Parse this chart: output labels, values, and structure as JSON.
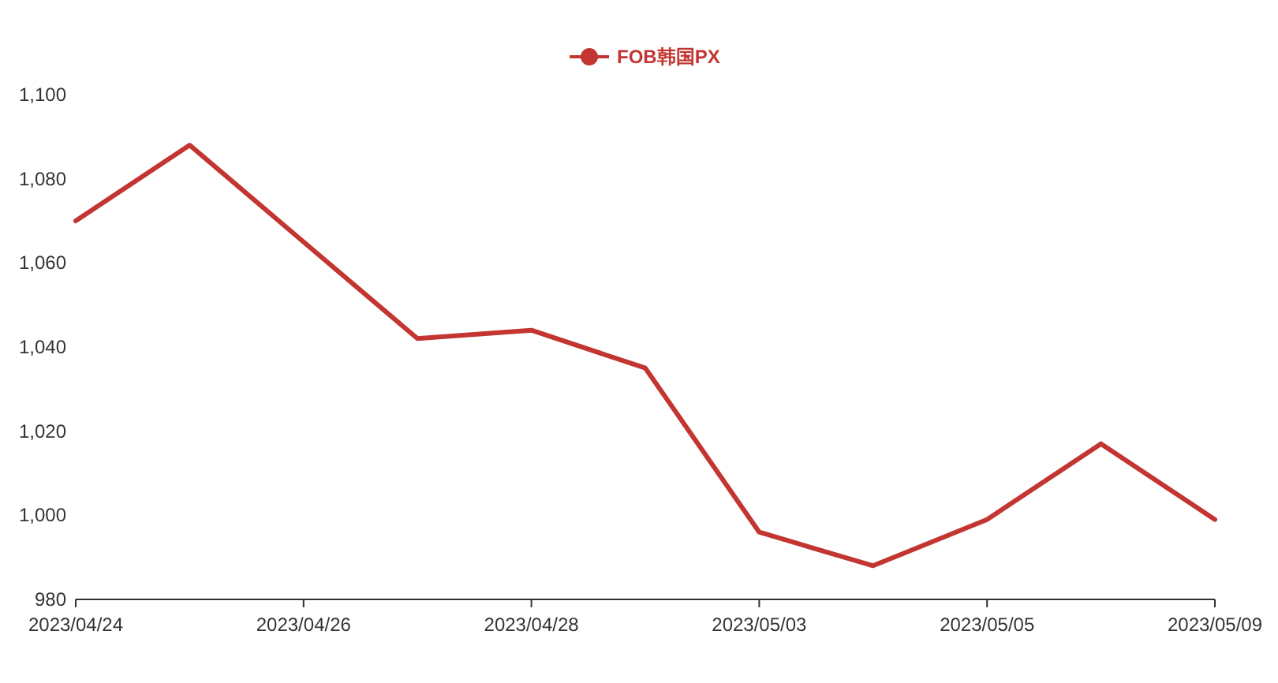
{
  "chart_data": {
    "type": "line",
    "categories": [
      "2023/04/24",
      null,
      "2023/04/26",
      null,
      "2023/04/28",
      null,
      "2023/05/03",
      null,
      "2023/05/05",
      null,
      "2023/05/09"
    ],
    "series": [
      {
        "name": "FOB韩国PX",
        "color": "#c23531",
        "values": [
          1070,
          1088,
          1065,
          1042,
          1044,
          1035,
          996,
          988,
          999,
          1017,
          999
        ]
      }
    ],
    "ylim": [
      980,
      1100
    ],
    "yticks": [
      {
        "value": 980,
        "label": "980"
      },
      {
        "value": 1000,
        "label": "1,000"
      },
      {
        "value": 1020,
        "label": "1,020"
      },
      {
        "value": 1040,
        "label": "1,040"
      },
      {
        "value": 1060,
        "label": "1,060"
      },
      {
        "value": 1080,
        "label": "1,080"
      },
      {
        "value": 1100,
        "label": "1,100"
      }
    ],
    "grid": false,
    "legend": "top",
    "marker": "none",
    "line_style": "solid"
  }
}
